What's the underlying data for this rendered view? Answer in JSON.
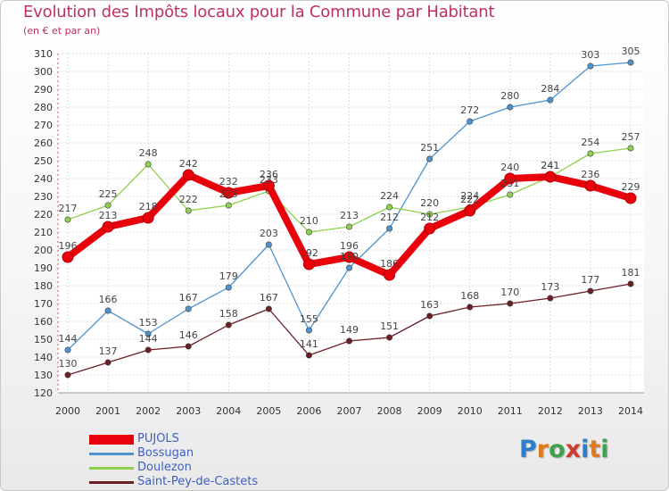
{
  "header": {
    "title": "Evolution des Impôts locaux pour la Commune par Habitant",
    "subtitle": "(en € et par an)"
  },
  "logo": {
    "letters": [
      "P",
      "r",
      "o",
      "x",
      "i",
      "t",
      "i"
    ],
    "colors": [
      "#2e7fc9",
      "#e07a1a",
      "#3fa34d",
      "#d13b2f",
      "#2e7fc9",
      "#e07a1a",
      "#3fa34d"
    ]
  },
  "chart_data": {
    "type": "line",
    "title": "Evolution des Impôts locaux pour la Commune par Habitant",
    "ylabel": "(en € et par an)",
    "xlabel": "",
    "x": [
      "2000",
      "2001",
      "2002",
      "2003",
      "2004",
      "2005",
      "2006",
      "2007",
      "2008",
      "2009",
      "2010",
      "2011",
      "2012",
      "2013",
      "2014"
    ],
    "ylim": [
      120,
      310
    ],
    "yticks": [
      120,
      130,
      140,
      150,
      160,
      170,
      180,
      190,
      200,
      210,
      220,
      230,
      240,
      250,
      260,
      270,
      280,
      290,
      300,
      310
    ],
    "grid": true,
    "legend_position": "bottom-left",
    "series": [
      {
        "name": "PUJOLS",
        "color": "#e8000b",
        "values": [
          196,
          213,
          218,
          242,
          232,
          236,
          192,
          196,
          186,
          212,
          222,
          240,
          241,
          236,
          229
        ]
      },
      {
        "name": "Bossugan",
        "color": "#4f93cf",
        "values": [
          144,
          166,
          153,
          167,
          179,
          203,
          155,
          190,
          212,
          251,
          272,
          280,
          284,
          303,
          305
        ]
      },
      {
        "name": "Doulezon",
        "color": "#8fd14f",
        "values": [
          217,
          225,
          248,
          222,
          225,
          233,
          210,
          213,
          224,
          220,
          224,
          231,
          241,
          254,
          257
        ]
      },
      {
        "name": "Saint-Pey-de-Castets",
        "color": "#6b1f24",
        "values": [
          130,
          137,
          144,
          146,
          158,
          167,
          141,
          149,
          151,
          163,
          168,
          170,
          173,
          177,
          181
        ]
      }
    ]
  }
}
